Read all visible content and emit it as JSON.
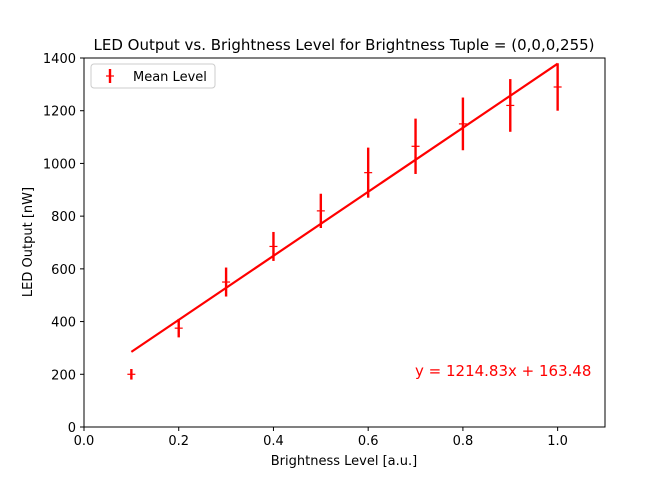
{
  "chart_data": {
    "type": "scatter",
    "title": "LED Output vs. Brightness Level for Brightness Tuple = (0,0,0,255)",
    "xlabel": "Brightness Level [a.u.]",
    "ylabel": "LED Output [nW]",
    "xlim": [
      0.0,
      1.1
    ],
    "ylim": [
      0,
      1400
    ],
    "xticks": [
      "0.0",
      "0.2",
      "0.4",
      "0.6",
      "0.8",
      "1.0"
    ],
    "xtick_values": [
      0.0,
      0.2,
      0.4,
      0.6,
      0.8,
      1.0
    ],
    "yticks": [
      "0",
      "200",
      "400",
      "600",
      "800",
      "1000",
      "1200",
      "1400"
    ],
    "ytick_values": [
      0,
      200,
      400,
      600,
      800,
      1000,
      1200,
      1400
    ],
    "grid": false,
    "legend_position": "top-left",
    "color": "#ff0000",
    "series": [
      {
        "name": "Mean Level",
        "kind": "errorbar",
        "x": [
          0.1,
          0.2,
          0.3,
          0.4,
          0.5,
          0.6,
          0.7,
          0.8,
          0.9,
          1.0
        ],
        "y": [
          200,
          375,
          550,
          685,
          820,
          965,
          1065,
          1150,
          1220,
          1290
        ],
        "yerr": [
          20,
          35,
          55,
          55,
          65,
          95,
          105,
          100,
          100,
          90
        ]
      },
      {
        "name": "",
        "kind": "fit-line",
        "x": [
          0.1,
          1.0
        ],
        "y": [
          284.96,
          1378.31
        ]
      }
    ],
    "annotation": "y = 1214.83x + 163.48"
  }
}
